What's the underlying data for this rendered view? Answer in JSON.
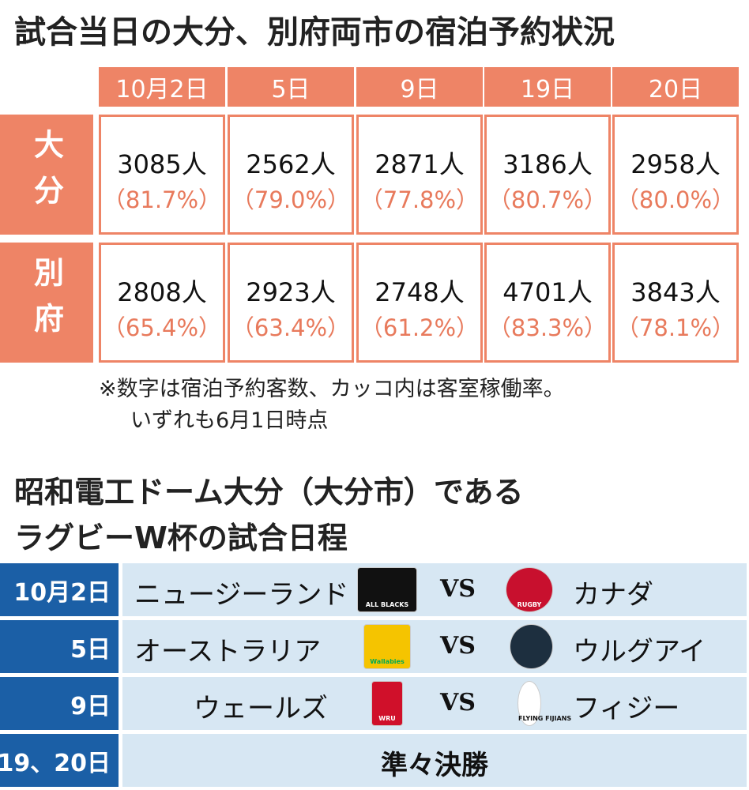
{
  "occupancy": {
    "title": "試合当日の大分、別府両市の宿泊予約状況",
    "columns": [
      "10月2日",
      "5日",
      "9日",
      "19日",
      "20日"
    ],
    "rows": [
      {
        "label": "大分",
        "guests": [
          "3085人",
          "2562人",
          "2871人",
          "3186人",
          "2958人"
        ],
        "rates": [
          "（81.7%）",
          "（79.0%）",
          "（77.8%）",
          "（80.7%）",
          "（80.0%）"
        ]
      },
      {
        "label": "別府",
        "guests": [
          "2808人",
          "2923人",
          "2748人",
          "4701人",
          "3843人"
        ],
        "rates": [
          "（65.4%）",
          "（63.4%）",
          "（61.2%）",
          "（83.3%）",
          "（78.1%）"
        ]
      }
    ],
    "note": [
      "※数字は宿泊予約客数、カッコ内は客室稼働率。",
      "いずれも6月1日時点"
    ]
  },
  "schedule": {
    "title": [
      "昭和電工ドーム大分（大分市）である",
      "ラグビーW杯の試合日程"
    ],
    "matches": [
      {
        "date": "10月2日",
        "team1": "ニュージーランド",
        "logo1": "ALL BLACKS",
        "vs": "VS",
        "team2": "カナダ",
        "logo2": "RUGBY"
      },
      {
        "date": "5日",
        "team1": "オーストラリア",
        "logo1": "Wallabies",
        "vs": "VS",
        "team2": "ウルグアイ",
        "logo2": ""
      },
      {
        "date": "9日",
        "team1": "ウェールズ",
        "logo1": "WRU",
        "vs": "VS",
        "team2": "フィジー",
        "logo2": "FLYING FIJIANS"
      },
      {
        "date": "19、20日",
        "stage": "準々決勝"
      }
    ]
  }
}
